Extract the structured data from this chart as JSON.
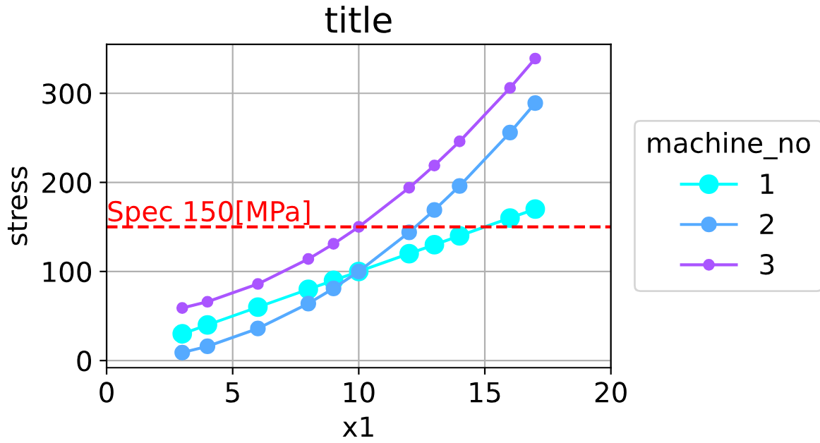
{
  "chart_data": {
    "type": "line",
    "title": "title",
    "xlabel": "x1",
    "ylabel": "stress",
    "legend_title": "machine_no",
    "legend": "right",
    "marker": "circle",
    "line_style": "solid",
    "grid": true,
    "xlim": [
      0,
      20
    ],
    "xticks": [
      0,
      5,
      10,
      15,
      20
    ],
    "ylim": [
      -8,
      355
    ],
    "yticks": [
      0,
      100,
      200,
      300
    ],
    "x": [
      3,
      4,
      6,
      8,
      9,
      10,
      12,
      13,
      14,
      16,
      17
    ],
    "series": [
      {
        "name": "1",
        "color": "#00ffff",
        "values": [
          30,
          40,
          60,
          80,
          90,
          100,
          120,
          130,
          140,
          160,
          170
        ]
      },
      {
        "name": "2",
        "color": "#55aaff",
        "values": [
          9,
          16,
          36,
          64,
          81,
          100,
          144,
          169,
          196,
          256,
          289
        ]
      },
      {
        "name": "3",
        "color": "#aa55ff",
        "values": [
          59,
          66,
          86,
          114,
          131,
          150,
          194,
          219,
          246,
          306,
          339
        ]
      }
    ],
    "ref_lines": [
      {
        "axis": "y",
        "value": 150,
        "label": "Spec 150[MPa]",
        "color": "#ff0000",
        "line_style": "dashed"
      }
    ]
  }
}
